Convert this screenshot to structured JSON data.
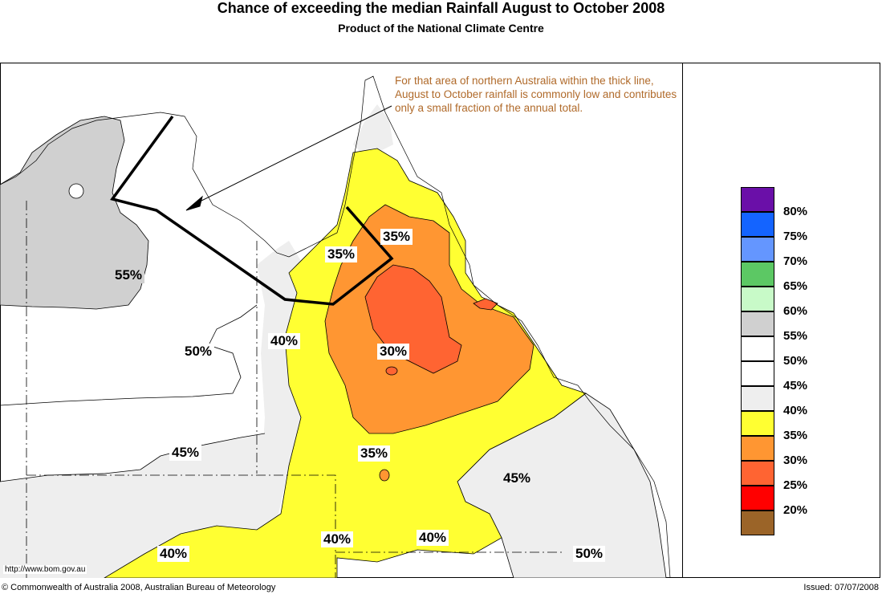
{
  "header": {
    "title": "Chance of exceeding the median Rainfall August to October 2008",
    "subtitle": "Product of the National Climate Centre"
  },
  "note": "For that area of northern Australia within the thick line, August to October rainfall is commonly low and contributes only a small fraction of the annual total.",
  "map_labels": [
    "55%",
    "50%",
    "45%",
    "40%",
    "40%",
    "40%",
    "40%",
    "35%",
    "35%",
    "35%",
    "30%",
    "45%",
    "50%"
  ],
  "legend": {
    "colors": [
      "#6a0fa8",
      "#1464ff",
      "#6496ff",
      "#5cc864",
      "#c8fac8",
      "#d0d0d0",
      "#ffffff",
      "#ffffff",
      "#eeeeee",
      "#ffff32",
      "#ff9632",
      "#ff6432",
      "#ff0000",
      "#9b6428"
    ],
    "labels": [
      "80%",
      "75%",
      "70%",
      "65%",
      "60%",
      "55%",
      "50%",
      "45%",
      "40%",
      "35%",
      "30%",
      "25%",
      "20%"
    ]
  },
  "url": "http://www.bom.gov.au",
  "footer": {
    "copyright": "© Commonwealth of Australia 2008, Australian Bureau of Meteorology",
    "issued": "Issued: 07/07/2008"
  }
}
